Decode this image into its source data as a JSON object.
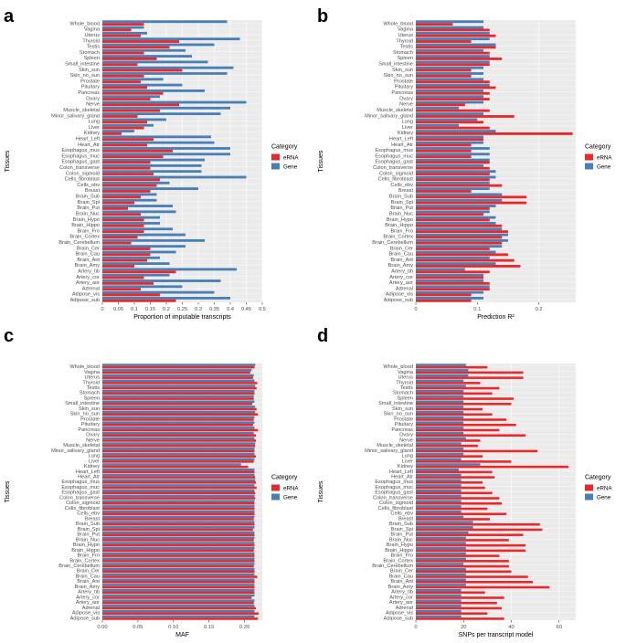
{
  "figure": {
    "tissues_top_to_bottom": [
      "Whole_blood",
      "Vagina",
      "Uterus",
      "Thyroid",
      "Testis",
      "Stomach",
      "Spleen",
      "Small_intestine",
      "Skin_sun",
      "Skin_no_sun",
      "Prostate",
      "Pituitary",
      "Pancreas",
      "Ovary",
      "Nerve",
      "Muscle_skeletal",
      "Minor_salivary_gland",
      "Lung",
      "Liver",
      "Kidney",
      "Heart_Left",
      "Heart_Atr",
      "Esophagus_mus",
      "Esophagus_muc",
      "Esophagus_gast",
      "Colon_transverse",
      "Colon_sigmoid",
      "Cells_fibroblast",
      "Cells_ebv",
      "Breast",
      "Brain_Sub",
      "Brain_Spi",
      "Brain_Put",
      "Brain_Nuc",
      "Brain_Hypo",
      "Brain_Hippo",
      "Brain_Fro",
      "Brain_Cortex",
      "Brain_Cerebellum",
      "Brain_Cer",
      "Brain_Cau",
      "Brain_Ant",
      "Brain_Amy",
      "Artery_tib",
      "Artery_cor",
      "Artery_aor",
      "Adrenal",
      "Adipose_vis",
      "Adipose_sub"
    ],
    "colors": {
      "eRNA": "#e8282b",
      "Gene": "#4a7fb5",
      "grid": "#ffffff",
      "panel": "#ebebeb",
      "axis_text": "#4d4d4d"
    }
  },
  "chart_data": [
    {
      "panel_id": "a",
      "type": "bar",
      "orientation": "horizontal",
      "xlabel": "Proportion of imputable transcripts",
      "ylabel": "Tissues",
      "xlim": [
        0,
        0.5
      ],
      "ticks": [
        "0",
        "0.05",
        "0.1",
        "0.15",
        "0.2",
        "0.25",
        "0.3",
        "0.35",
        "0.4",
        "0.45",
        "0.5"
      ],
      "tick_values": [
        0,
        0.05,
        0.1,
        0.15,
        0.2,
        0.25,
        0.3,
        0.35,
        0.4,
        0.45,
        0.5
      ],
      "legend": {
        "title": "Category",
        "items": [
          "eRNA",
          "Gene"
        ]
      },
      "series": [
        {
          "name": "eRNA",
          "values": [
            0.13,
            0.09,
            0.12,
            0.24,
            0.21,
            0.13,
            0.17,
            0.11,
            0.25,
            0.13,
            0.12,
            0.14,
            0.19,
            0.15,
            0.24,
            0.18,
            0.11,
            0.14,
            0.13,
            0.06,
            0.16,
            0.14,
            0.22,
            0.19,
            0.15,
            0.15,
            0.16,
            0.18,
            0.17,
            0.15,
            0.12,
            0.1,
            0.08,
            0.12,
            0.13,
            0.13,
            0.13,
            0.11,
            0.09,
            0.15,
            0.15,
            0.14,
            0.1,
            0.23,
            0.13,
            0.16,
            0.12,
            0.18,
            0.23
          ]
        },
        {
          "name": "Gene",
          "values": [
            0.39,
            0.13,
            0.14,
            0.43,
            0.35,
            0.26,
            0.28,
            0.33,
            0.41,
            0.39,
            0.19,
            0.25,
            0.32,
            0.18,
            0.45,
            0.4,
            0.37,
            0.2,
            0.16,
            0.1,
            0.34,
            0.35,
            0.4,
            0.4,
            0.32,
            0.31,
            0.31,
            0.45,
            0.21,
            0.3,
            0.17,
            0.17,
            0.22,
            0.23,
            0.18,
            0.18,
            0.22,
            0.26,
            0.32,
            0.26,
            0.23,
            0.18,
            0.21,
            0.42,
            0.21,
            0.37,
            0.25,
            0.35,
            0.4
          ]
        }
      ]
    },
    {
      "panel_id": "b",
      "type": "bar",
      "orientation": "horizontal",
      "xlabel": "Prediction R²",
      "ylabel": "Tissues",
      "xlim": [
        0,
        0.26
      ],
      "ticks": [
        "0",
        "0.1",
        "0.2"
      ],
      "tick_values": [
        0,
        0.1,
        0.2
      ],
      "legend": {
        "title": "Category",
        "items": [
          "eRNA",
          "Gene"
        ]
      },
      "series": [
        {
          "name": "eRNA",
          "values": [
            0.06,
            0.12,
            0.13,
            0.09,
            0.13,
            0.12,
            0.14,
            0.12,
            0.09,
            0.09,
            0.12,
            0.13,
            0.12,
            0.12,
            0.08,
            0.12,
            0.16,
            0.11,
            0.12,
            0.255,
            0.11,
            0.09,
            0.09,
            0.09,
            0.12,
            0.12,
            0.12,
            0.12,
            0.14,
            0.09,
            0.18,
            0.18,
            0.12,
            0.11,
            0.12,
            0.14,
            0.15,
            0.14,
            0.14,
            0.12,
            0.15,
            0.16,
            0.17,
            0.12,
            0.11,
            0.12,
            0.12,
            0.09,
            0.09
          ]
        },
        {
          "name": "Gene",
          "values": [
            0.11,
            0.11,
            0.12,
            0.12,
            0.13,
            0.11,
            0.12,
            0.12,
            0.11,
            0.11,
            0.11,
            0.12,
            0.11,
            0.11,
            0.11,
            0.07,
            0.11,
            0.1,
            0.07,
            0.13,
            0.11,
            0.11,
            0.12,
            0.12,
            0.12,
            0.11,
            0.13,
            0.13,
            0.12,
            0.12,
            0.14,
            0.14,
            0.13,
            0.12,
            0.13,
            0.13,
            0.14,
            0.15,
            0.15,
            0.14,
            0.13,
            0.12,
            0.13,
            0.08,
            0.11,
            0.11,
            0.12,
            0.11,
            0.11
          ]
        }
      ]
    },
    {
      "panel_id": "c",
      "type": "bar",
      "orientation": "horizontal",
      "xlabel": "MAF",
      "ylabel": "Tissues",
      "xlim": [
        0,
        0.225
      ],
      "ticks": [
        "0.00",
        "0.05",
        "0.10",
        "0.15",
        "0.20"
      ],
      "tick_values": [
        0,
        0.05,
        0.1,
        0.15,
        0.2
      ],
      "legend": {
        "title": "Category",
        "items": [
          "eRNA",
          "Gene"
        ]
      },
      "series": [
        {
          "name": "eRNA",
          "values": [
            0.214,
            0.208,
            0.212,
            0.218,
            0.217,
            0.214,
            0.213,
            0.211,
            0.217,
            0.219,
            0.213,
            0.212,
            0.219,
            0.216,
            0.216,
            0.215,
            0.214,
            0.216,
            0.213,
            0.205,
            0.214,
            0.215,
            0.216,
            0.217,
            0.215,
            0.215,
            0.214,
            0.214,
            0.214,
            0.213,
            0.214,
            0.212,
            0.214,
            0.213,
            0.214,
            0.213,
            0.214,
            0.214,
            0.213,
            0.214,
            0.218,
            0.214,
            0.214,
            0.214,
            0.21,
            0.213,
            0.216,
            0.22,
            0.219
          ]
        },
        {
          "name": "Gene",
          "values": [
            0.215,
            0.21,
            0.213,
            0.214,
            0.215,
            0.214,
            0.213,
            0.214,
            0.215,
            0.215,
            0.214,
            0.214,
            0.214,
            0.213,
            0.214,
            0.215,
            0.214,
            0.214,
            0.214,
            0.195,
            0.214,
            0.214,
            0.215,
            0.214,
            0.214,
            0.214,
            0.214,
            0.214,
            0.214,
            0.214,
            0.214,
            0.214,
            0.214,
            0.214,
            0.214,
            0.214,
            0.214,
            0.214,
            0.214,
            0.214,
            0.214,
            0.214,
            0.214,
            0.214,
            0.214,
            0.214,
            0.214,
            0.214,
            0.214
          ]
        }
      ]
    },
    {
      "panel_id": "d",
      "type": "bar",
      "orientation": "horizontal",
      "xlabel": "SNPs per transcript model",
      "ylabel": "Tissues",
      "xlim": [
        0,
        67
      ],
      "ticks": [
        "0",
        "20",
        "40",
        "60"
      ],
      "tick_values": [
        0,
        20,
        40,
        60
      ],
      "legend": {
        "title": "Category",
        "items": [
          "eRNA",
          "Gene"
        ]
      },
      "series": [
        {
          "name": "eRNA",
          "values": [
            30,
            45,
            45,
            27,
            35,
            32,
            41,
            40,
            28,
            32,
            38,
            42,
            35,
            46,
            27,
            26,
            51,
            28,
            40,
            64,
            32,
            33,
            28,
            29,
            32,
            35,
            36,
            30,
            38,
            31,
            52,
            53,
            45,
            39,
            46,
            46,
            35,
            39,
            39,
            40,
            47,
            49,
            56,
            29,
            37,
            34,
            36,
            30,
            37
          ]
        },
        {
          "name": "Gene",
          "values": [
            21,
            22,
            22,
            20,
            21,
            20,
            20,
            20,
            20,
            20,
            20,
            20,
            20,
            20,
            21,
            19,
            20,
            20,
            19,
            27,
            18,
            19,
            19,
            19,
            19,
            19,
            19,
            19,
            19,
            20,
            24,
            24,
            22,
            21,
            21,
            21,
            21,
            21,
            20,
            21,
            21,
            21,
            21,
            19,
            19,
            19,
            19,
            19,
            19
          ]
        }
      ]
    }
  ]
}
